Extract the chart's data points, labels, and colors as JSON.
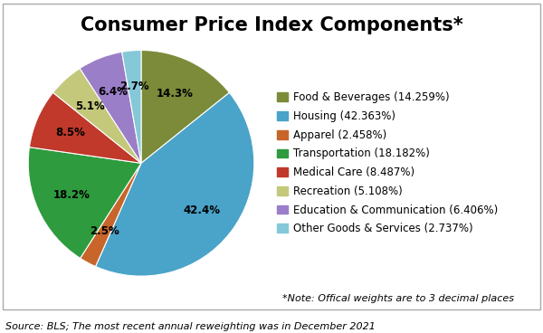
{
  "title": "Consumer Price Index Components*",
  "labels": [
    "Food & Beverages (14.259%)",
    "Housing (42.363%)",
    "Apparel (2.458%)",
    "Transportation (18.182%)",
    "Medical Care (8.487%)",
    "Recreation (5.108%)",
    "Education & Communication (6.406%)",
    "Other Goods & Services (2.737%)"
  ],
  "values": [
    14.259,
    42.363,
    2.458,
    18.182,
    8.487,
    5.108,
    6.406,
    2.737
  ],
  "autopct_labels": [
    "14.3%",
    "42.4%",
    "2.5%",
    "18.2%",
    "8.5%",
    "5.1%",
    "6.4%",
    "2.7%"
  ],
  "colors": [
    "#7B8B3A",
    "#4AA3C8",
    "#C8652A",
    "#2E9B3E",
    "#C0392B",
    "#C4C87A",
    "#9B7EC8",
    "#85C8D8"
  ],
  "note": "*Note: Offical weights are to 3 decimal places",
  "source": "Source: BLS; The most recent annual reweighting was in December 2021",
  "title_fontsize": 15,
  "legend_fontsize": 8.5,
  "note_fontsize": 8,
  "source_fontsize": 8,
  "autopct_fontsize": 8.5,
  "startangle": 90
}
